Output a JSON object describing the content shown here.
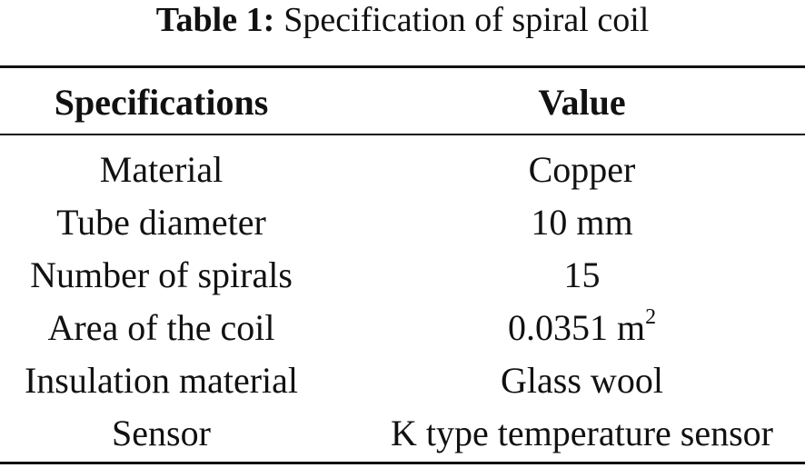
{
  "caption": {
    "label": "Table 1:",
    "title": "Specification of spiral coil"
  },
  "table": {
    "headers": [
      "Specifications",
      "Value"
    ],
    "rows": [
      {
        "spec": "Material",
        "value": "Copper",
        "sup": ""
      },
      {
        "spec": "Tube diameter",
        "value": "10 mm",
        "sup": ""
      },
      {
        "spec": "Number of spirals",
        "value": "15",
        "sup": ""
      },
      {
        "spec": "Area of the coil",
        "value": "0.0351 m",
        "sup": "2"
      },
      {
        "spec": "Insulation material",
        "value": "Glass wool",
        "sup": ""
      },
      {
        "spec": "Sensor",
        "value": "K type temperature sensor",
        "sup": ""
      }
    ]
  }
}
